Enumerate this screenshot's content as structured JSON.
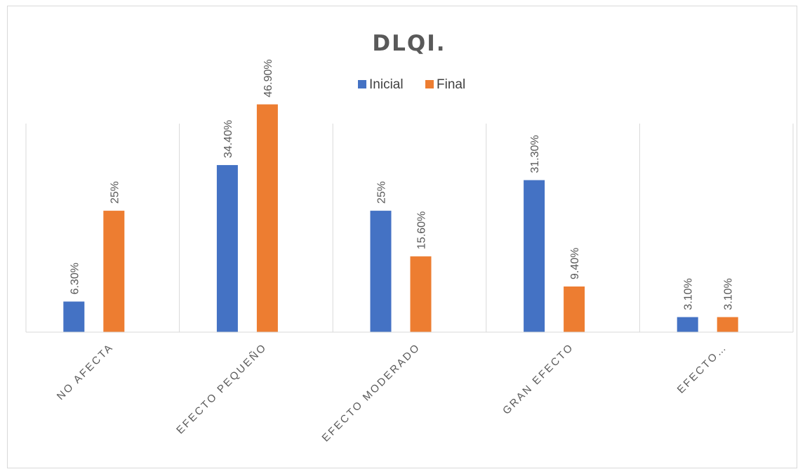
{
  "chart_data": {
    "type": "bar",
    "title": "DLQI.",
    "categories": [
      "NO AFECTA",
      "EFECTO PEQUEÑO",
      "EFECTO MODERADO",
      "GRAN EFECTO",
      "EFECTO…"
    ],
    "series": [
      {
        "name": "Inicial",
        "color": "#4472c4",
        "values": [
          6.3,
          34.4,
          25,
          31.3,
          3.1
        ],
        "labels": [
          "6.30%",
          "34.40%",
          "25%",
          "31.30%",
          "3.10%"
        ]
      },
      {
        "name": "Final",
        "color": "#ed7d31",
        "values": [
          25,
          46.9,
          15.6,
          9.4,
          3.1
        ],
        "labels": [
          "25%",
          "46.90%",
          "15.60%",
          "9.40%",
          "3.10%"
        ]
      }
    ],
    "ylim": [
      0,
      48
    ],
    "legend_position": "top-center",
    "grid": "vertical category separators"
  }
}
